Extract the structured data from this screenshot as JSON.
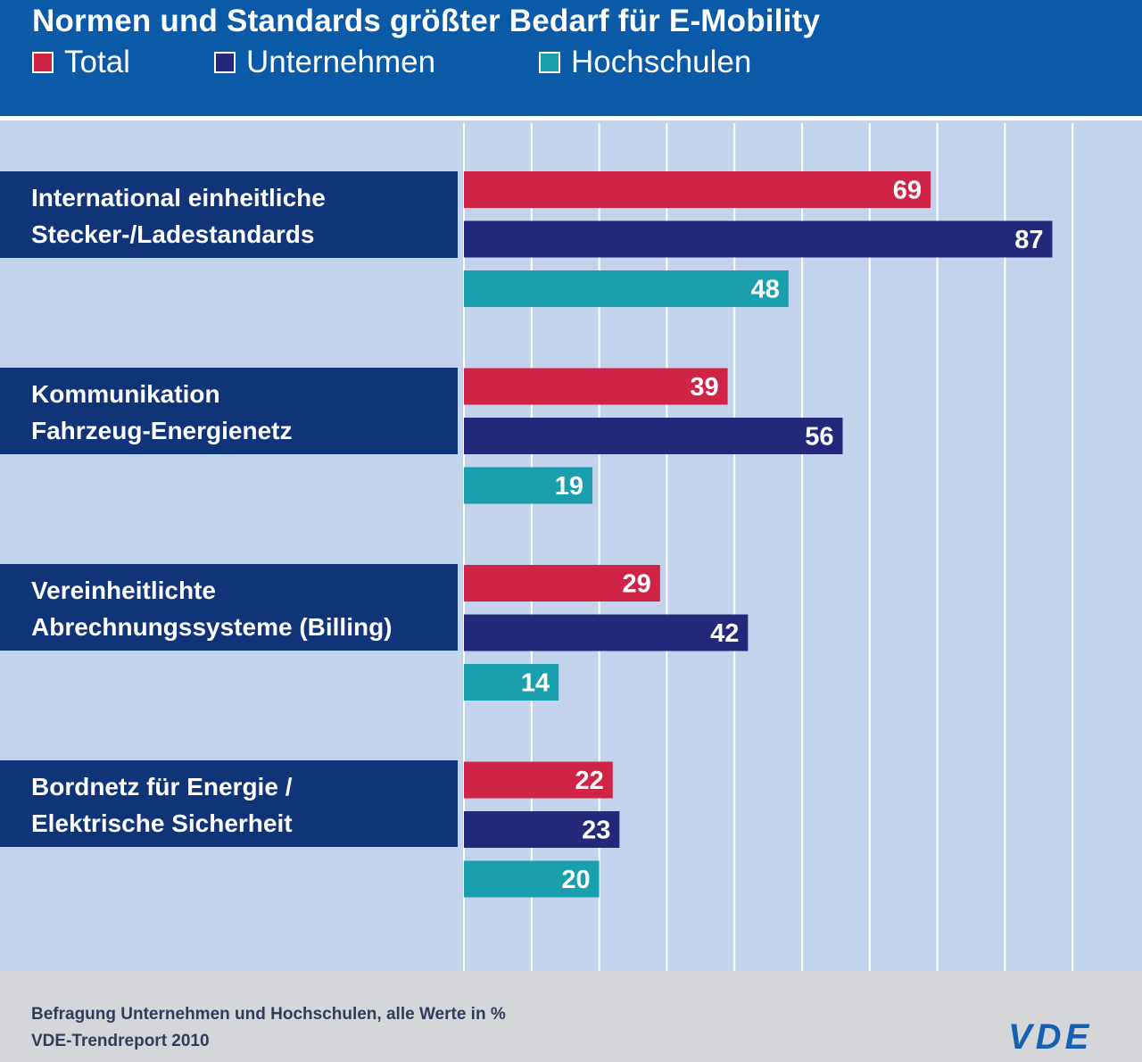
{
  "colors": {
    "header_bg": "#0a5aa8",
    "plot_bg": "#c3d3ec",
    "category_bg": "#0f3478",
    "footer_bg": "#d4d6da",
    "logo": "#1460b2"
  },
  "chart_data": {
    "type": "bar",
    "orientation": "horizontal",
    "title": "Normen und Standards größter Bedarf für E-Mobility",
    "categories": [
      [
        "International einheitliche",
        "Stecker-/Ladestandards"
      ],
      [
        "Kommunikation",
        "Fahrzeug-Energienetz"
      ],
      [
        "Vereinheitlichte",
        "Abrechnungssysteme (Billing)"
      ],
      [
        "Bordnetz für Energie /",
        "Elektrische Sicherheit"
      ]
    ],
    "series": [
      {
        "name": "Total",
        "color": "#cf2446",
        "values": [
          69,
          39,
          29,
          22
        ]
      },
      {
        "name": "Unternehmen",
        "color": "#24287a",
        "values": [
          87,
          56,
          42,
          23
        ]
      },
      {
        "name": "Hochschulen",
        "color": "#1a9fae",
        "values": [
          48,
          19,
          14,
          20
        ]
      }
    ],
    "xlim": [
      0,
      90
    ],
    "xticks": [
      "0",
      "10",
      "20",
      "30",
      "40",
      "50",
      "60",
      "70",
      "80",
      "90"
    ],
    "grid": true,
    "legend": "top-left",
    "data_labels": true
  },
  "footer": {
    "note": "Befragung Unternehmen und Hochschulen, alle Werte in %",
    "source": "VDE-Trendreport 2010",
    "logo_text": "VDE"
  }
}
